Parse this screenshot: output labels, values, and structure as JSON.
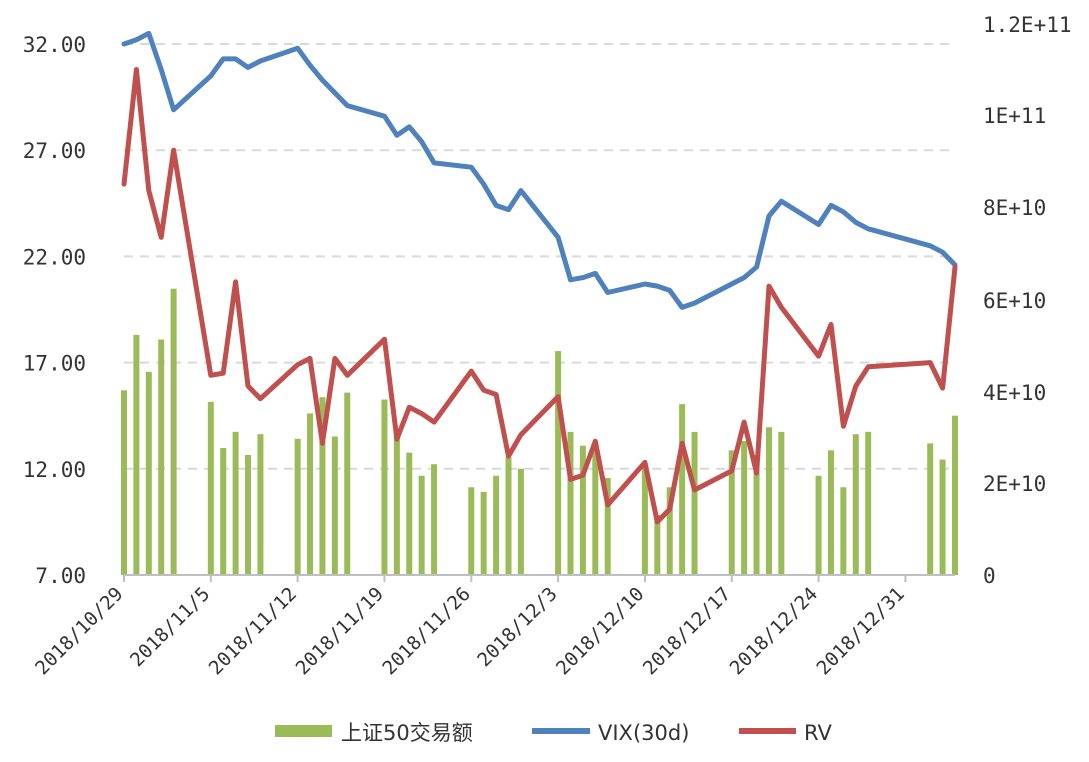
{
  "chart_data": {
    "type": "bar+line",
    "title": "",
    "x_start_date": "2018/10/29",
    "x_end_date": "2019/1/4",
    "x_tick_labels": [
      "2018/10/29",
      "2018/11/5",
      "2018/11/12",
      "2018/11/19",
      "2018/11/26",
      "2018/12/3",
      "2018/12/10",
      "2018/12/17",
      "2018/12/24",
      "2018/12/31"
    ],
    "y_left": {
      "ticks": [
        "7.00",
        "12.00",
        "17.00",
        "22.00",
        "27.00",
        "32.00"
      ],
      "min": 7,
      "max": 32
    },
    "y_right": {
      "ticks": [
        "0",
        "2E+10",
        "4E+10",
        "6E+10",
        "8E+10",
        "1E+11",
        "1.2E+11"
      ],
      "min": 0,
      "max": 115000000000
    },
    "legend": {
      "position": "bottom",
      "items": [
        "上证50交易额",
        "VIX(30d)",
        "RV"
      ]
    },
    "colors": {
      "bars": "#9bbb59",
      "vix": "#4f81bd",
      "rv": "#c0504d"
    },
    "bar_series": {
      "name": "上证50交易额",
      "axis": "right",
      "points": [
        [
          "2018/10/29",
          40000000000
        ],
        [
          "2018/10/30",
          52000000000
        ],
        [
          "2018/10/31",
          44000000000
        ],
        [
          "2018/11/1",
          51000000000
        ],
        [
          "2018/11/2",
          62000000000
        ],
        [
          "2018/11/5",
          37500000000
        ],
        [
          "2018/11/6",
          27500000000
        ],
        [
          "2018/11/7",
          31000000000
        ],
        [
          "2018/11/8",
          26000000000
        ],
        [
          "2018/11/9",
          30500000000
        ],
        [
          "2018/11/12",
          29500000000
        ],
        [
          "2018/11/13",
          35000000000
        ],
        [
          "2018/11/14",
          38500000000
        ],
        [
          "2018/11/15",
          30000000000
        ],
        [
          "2018/11/16",
          39500000000
        ],
        [
          "2018/11/19",
          38000000000
        ],
        [
          "2018/11/20",
          31000000000
        ],
        [
          "2018/11/21",
          26500000000
        ],
        [
          "2018/11/22",
          21500000000
        ],
        [
          "2018/11/23",
          24000000000
        ],
        [
          "2018/11/26",
          19000000000
        ],
        [
          "2018/11/27",
          18000000000
        ],
        [
          "2018/11/28",
          21500000000
        ],
        [
          "2018/11/29",
          25500000000
        ],
        [
          "2018/11/30",
          23000000000
        ],
        [
          "2018/12/3",
          48500000000
        ],
        [
          "2018/12/4",
          31000000000
        ],
        [
          "2018/12/5",
          28000000000
        ],
        [
          "2018/12/6",
          28000000000
        ],
        [
          "2018/12/7",
          21000000000
        ],
        [
          "2018/12/10",
          23500000000
        ],
        [
          "2018/12/11",
          13000000000
        ],
        [
          "2018/12/12",
          19000000000
        ],
        [
          "2018/12/13",
          37000000000
        ],
        [
          "2018/12/14",
          31000000000
        ],
        [
          "2018/12/17",
          27000000000
        ],
        [
          "2018/12/18",
          29000000000
        ],
        [
          "2018/12/19",
          26000000000
        ],
        [
          "2018/12/20",
          32000000000
        ],
        [
          "2018/12/21",
          31000000000
        ],
        [
          "2018/12/24",
          21500000000
        ],
        [
          "2018/12/25",
          27000000000
        ],
        [
          "2018/12/26",
          19000000000
        ],
        [
          "2018/12/27",
          30500000000
        ],
        [
          "2018/12/28",
          31000000000
        ],
        [
          "2019/1/2",
          28500000000
        ],
        [
          "2019/1/3",
          25000000000
        ],
        [
          "2019/1/4",
          34500000000
        ]
      ]
    },
    "line_series": [
      {
        "name": "VIX(30d)",
        "axis": "left",
        "points": [
          [
            "2018/10/29",
            32.0
          ],
          [
            "2018/10/30",
            32.2
          ],
          [
            "2018/10/31",
            32.5
          ],
          [
            "2018/11/1",
            30.8
          ],
          [
            "2018/11/2",
            28.9
          ],
          [
            "2018/11/5",
            30.5
          ],
          [
            "2018/11/6",
            31.3
          ],
          [
            "2018/11/7",
            31.3
          ],
          [
            "2018/11/8",
            30.9
          ],
          [
            "2018/11/9",
            31.2
          ],
          [
            "2018/11/12",
            31.8
          ],
          [
            "2018/11/13",
            31.0
          ],
          [
            "2018/11/14",
            30.3
          ],
          [
            "2018/11/15",
            29.7
          ],
          [
            "2018/11/16",
            29.1
          ],
          [
            "2018/11/19",
            28.6
          ],
          [
            "2018/11/20",
            27.7
          ],
          [
            "2018/11/21",
            28.1
          ],
          [
            "2018/11/22",
            27.4
          ],
          [
            "2018/11/23",
            26.4
          ],
          [
            "2018/11/26",
            26.2
          ],
          [
            "2018/11/27",
            25.4
          ],
          [
            "2018/11/28",
            24.4
          ],
          [
            "2018/11/29",
            24.2
          ],
          [
            "2018/11/30",
            25.1
          ],
          [
            "2018/12/3",
            22.9
          ],
          [
            "2018/12/4",
            20.9
          ],
          [
            "2018/12/5",
            21.0
          ],
          [
            "2018/12/6",
            21.2
          ],
          [
            "2018/12/7",
            20.3
          ],
          [
            "2018/12/10",
            20.7
          ],
          [
            "2018/12/11",
            20.6
          ],
          [
            "2018/12/12",
            20.4
          ],
          [
            "2018/12/13",
            19.6
          ],
          [
            "2018/12/14",
            19.8
          ],
          [
            "2018/12/17",
            20.7
          ],
          [
            "2018/12/18",
            21.0
          ],
          [
            "2018/12/19",
            21.5
          ],
          [
            "2018/12/20",
            23.9
          ],
          [
            "2018/12/21",
            24.6
          ],
          [
            "2018/12/24",
            23.5
          ],
          [
            "2018/12/25",
            24.4
          ],
          [
            "2018/12/26",
            24.1
          ],
          [
            "2018/12/27",
            23.6
          ],
          [
            "2018/12/28",
            23.3
          ],
          [
            "2019/1/2",
            22.5
          ],
          [
            "2019/1/3",
            22.2
          ],
          [
            "2019/1/4",
            21.6
          ]
        ]
      },
      {
        "name": "RV",
        "axis": "left",
        "points": [
          [
            "2018/10/29",
            25.4
          ],
          [
            "2018/10/30",
            30.8
          ],
          [
            "2018/10/31",
            25.1
          ],
          [
            "2018/11/1",
            22.9
          ],
          [
            "2018/11/2",
            27.0
          ],
          [
            "2018/11/5",
            16.4
          ],
          [
            "2018/11/6",
            16.5
          ],
          [
            "2018/11/7",
            20.8
          ],
          [
            "2018/11/8",
            15.9
          ],
          [
            "2018/11/9",
            15.3
          ],
          [
            "2018/11/12",
            16.9
          ],
          [
            "2018/11/13",
            17.2
          ],
          [
            "2018/11/14",
            13.2
          ],
          [
            "2018/11/15",
            17.2
          ],
          [
            "2018/11/16",
            16.4
          ],
          [
            "2018/11/19",
            18.1
          ],
          [
            "2018/11/20",
            13.4
          ],
          [
            "2018/11/21",
            14.9
          ],
          [
            "2018/11/22",
            14.6
          ],
          [
            "2018/11/23",
            14.2
          ],
          [
            "2018/11/26",
            16.6
          ],
          [
            "2018/11/27",
            15.7
          ],
          [
            "2018/11/28",
            15.5
          ],
          [
            "2018/11/29",
            12.6
          ],
          [
            "2018/11/30",
            13.6
          ],
          [
            "2018/12/3",
            15.4
          ],
          [
            "2018/12/4",
            11.5
          ],
          [
            "2018/12/5",
            11.7
          ],
          [
            "2018/12/6",
            13.3
          ],
          [
            "2018/12/7",
            10.3
          ],
          [
            "2018/12/10",
            12.3
          ],
          [
            "2018/12/11",
            9.5
          ],
          [
            "2018/12/12",
            10.1
          ],
          [
            "2018/12/13",
            13.2
          ],
          [
            "2018/12/14",
            11.0
          ],
          [
            "2018/12/17",
            11.9
          ],
          [
            "2018/12/18",
            14.2
          ],
          [
            "2018/12/19",
            11.8
          ],
          [
            "2018/12/20",
            20.6
          ],
          [
            "2018/12/21",
            19.6
          ],
          [
            "2018/12/24",
            17.3
          ],
          [
            "2018/12/25",
            18.8
          ],
          [
            "2018/12/26",
            14.0
          ],
          [
            "2018/12/27",
            15.9
          ],
          [
            "2018/12/28",
            16.8
          ],
          [
            "2019/1/2",
            17.0
          ],
          [
            "2019/1/3",
            15.8
          ],
          [
            "2019/1/4",
            21.5
          ]
        ]
      }
    ]
  }
}
